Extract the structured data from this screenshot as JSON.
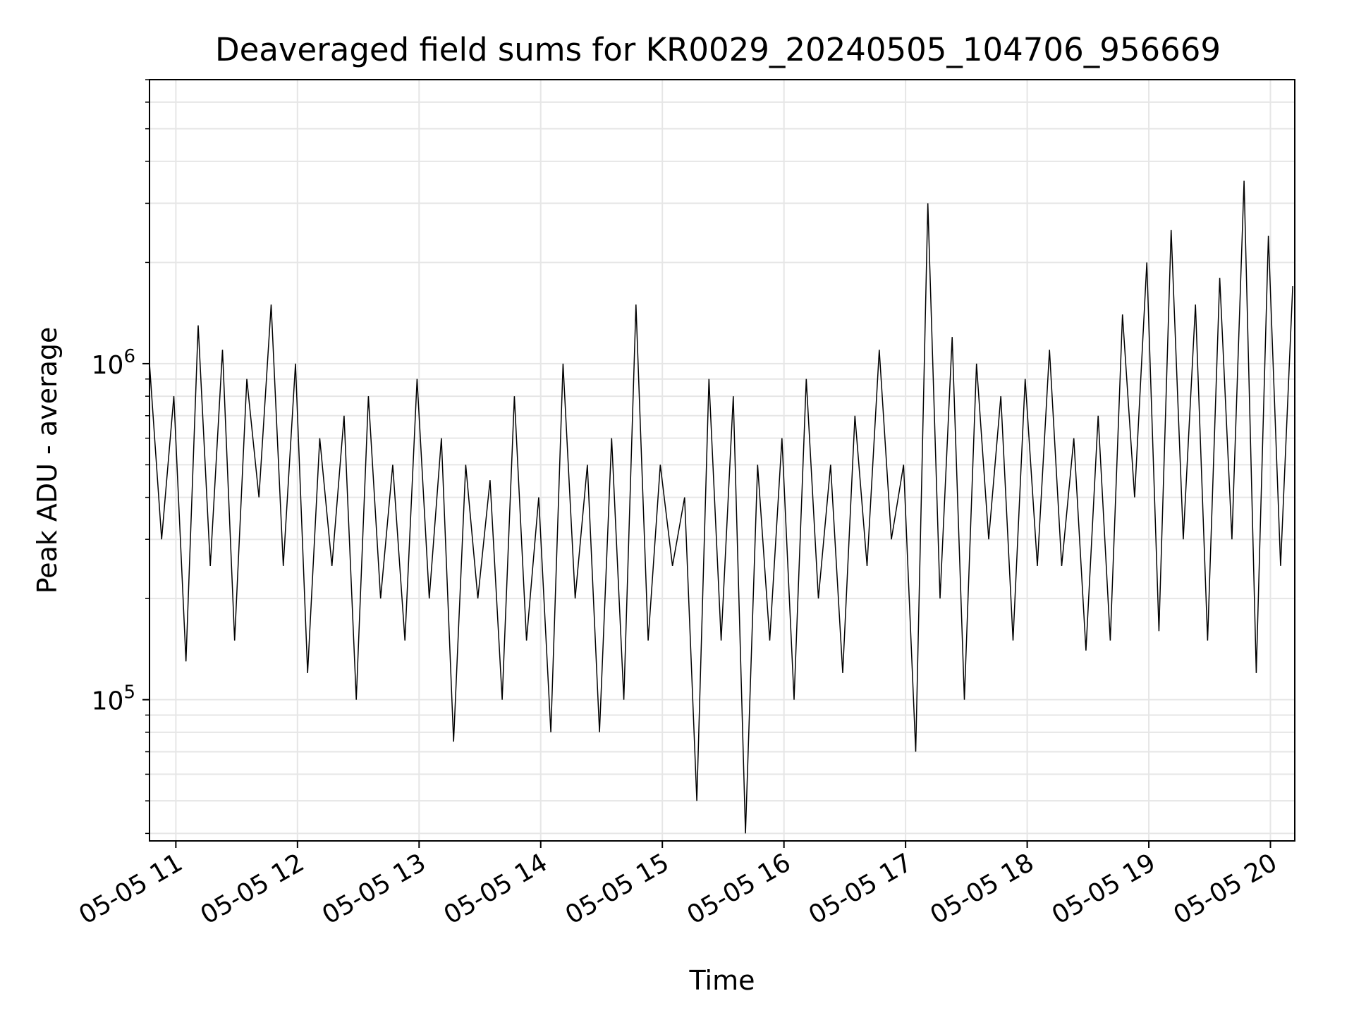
{
  "chart_data": {
    "type": "line",
    "title": "Deaveraged field sums for KR0029_20240505_104706_956669",
    "xlabel": "Time",
    "ylabel": "Peak ADU - average",
    "y_scale": "log",
    "ylim": [
      38000,
      7000000
    ],
    "xlim": [
      "2024-05-05 10:47",
      "2024-05-05 20:12"
    ],
    "grid": true,
    "line_color": "#000000",
    "x_ticks": [
      {
        "label": "05-05 11",
        "time": "2024-05-05 11:00"
      },
      {
        "label": "05-05 12",
        "time": "2024-05-05 12:00"
      },
      {
        "label": "05-05 13",
        "time": "2024-05-05 13:00"
      },
      {
        "label": "05-05 14",
        "time": "2024-05-05 14:00"
      },
      {
        "label": "05-05 15",
        "time": "2024-05-05 15:00"
      },
      {
        "label": "05-05 16",
        "time": "2024-05-05 16:00"
      },
      {
        "label": "05-05 17",
        "time": "2024-05-05 17:00"
      },
      {
        "label": "05-05 18",
        "time": "2024-05-05 18:00"
      },
      {
        "label": "05-05 19",
        "time": "2024-05-05 19:00"
      },
      {
        "label": "05-05 20",
        "time": "2024-05-05 20:00"
      }
    ],
    "y_ticks": [
      {
        "base": "10",
        "exp": "5",
        "value": 100000
      },
      {
        "base": "10",
        "exp": "6",
        "value": 1000000
      }
    ],
    "series": [
      {
        "x": [
          "10:47",
          "10:53",
          "10:59",
          "11:05",
          "11:11",
          "11:17",
          "11:23",
          "11:29",
          "11:35",
          "11:41",
          "11:47",
          "11:53",
          "11:59",
          "12:05",
          "12:11",
          "12:17",
          "12:23",
          "12:29",
          "12:35",
          "12:41",
          "12:47",
          "12:53",
          "12:59",
          "13:05",
          "13:11",
          "13:17",
          "13:23",
          "13:29",
          "13:35",
          "13:41",
          "13:47",
          "13:53",
          "13:59",
          "14:05",
          "14:11",
          "14:17",
          "14:23",
          "14:29",
          "14:35",
          "14:41",
          "14:47",
          "14:53",
          "14:59",
          "15:05",
          "15:11",
          "15:17",
          "15:23",
          "15:29",
          "15:35",
          "15:41",
          "15:47",
          "15:53",
          "15:59",
          "16:05",
          "16:11",
          "16:17",
          "16:23",
          "16:29",
          "16:35",
          "16:41",
          "16:47",
          "16:53",
          "16:59",
          "17:05",
          "17:11",
          "17:17",
          "17:23",
          "17:29",
          "17:35",
          "17:41",
          "17:47",
          "17:53",
          "17:59",
          "18:05",
          "18:11",
          "18:17",
          "18:23",
          "18:29",
          "18:35",
          "18:41",
          "18:47",
          "18:53",
          "18:59",
          "19:05",
          "19:11",
          "19:17",
          "19:23",
          "19:29",
          "19:35",
          "19:41",
          "19:47",
          "19:53",
          "19:59",
          "20:05",
          "20:11"
        ],
        "values": [
          1000000,
          300000,
          800000,
          130000,
          1300000,
          250000,
          1100000,
          150000,
          900000,
          400000,
          1500000,
          250000,
          1000000,
          120000,
          600000,
          250000,
          700000,
          100000,
          800000,
          200000,
          500000,
          150000,
          900000,
          200000,
          600000,
          75000,
          500000,
          200000,
          450000,
          100000,
          800000,
          150000,
          400000,
          80000,
          1000000,
          200000,
          500000,
          80000,
          600000,
          100000,
          1500000,
          150000,
          500000,
          250000,
          400000,
          50000,
          900000,
          150000,
          800000,
          40000,
          500000,
          150000,
          600000,
          100000,
          900000,
          200000,
          500000,
          120000,
          700000,
          250000,
          1100000,
          300000,
          500000,
          70000,
          3000000,
          200000,
          1200000,
          100000,
          1000000,
          300000,
          800000,
          150000,
          900000,
          250000,
          1100000,
          250000,
          600000,
          140000,
          700000,
          150000,
          1400000,
          400000,
          2000000,
          160000,
          2500000,
          300000,
          1500000,
          150000,
          1800000,
          300000,
          3500000,
          120000,
          2400000,
          250000,
          1700000
        ]
      }
    ]
  }
}
